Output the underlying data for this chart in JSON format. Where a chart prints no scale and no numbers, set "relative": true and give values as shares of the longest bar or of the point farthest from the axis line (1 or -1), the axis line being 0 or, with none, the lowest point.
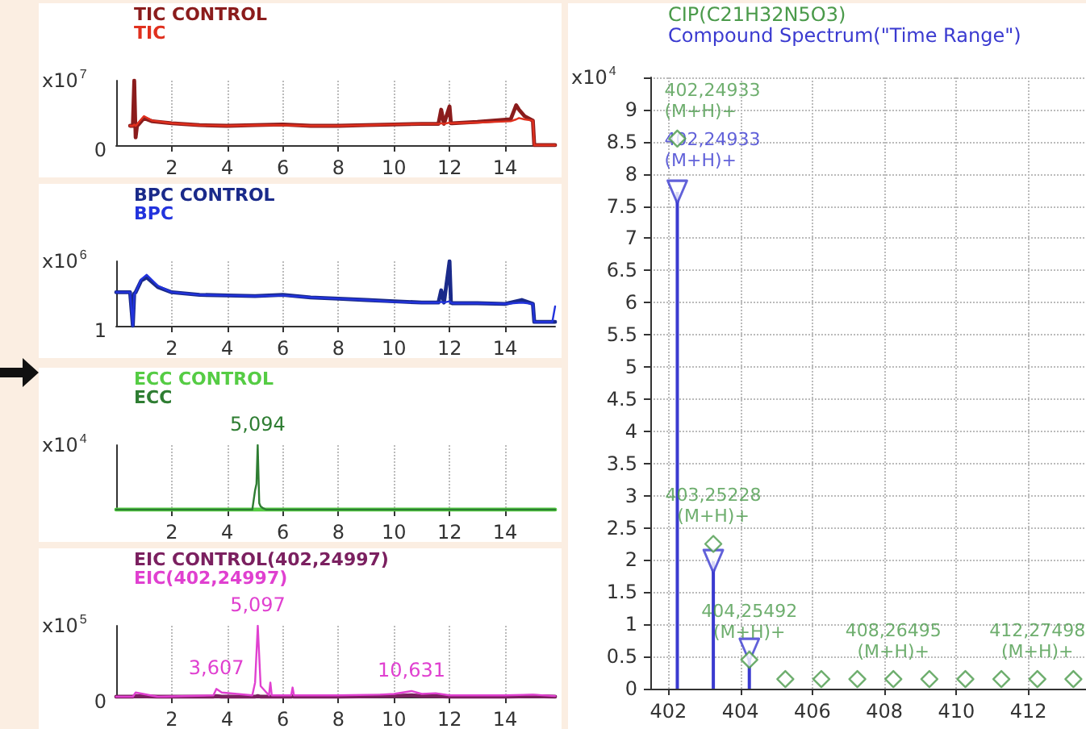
{
  "chart_data": [
    {
      "type": "line",
      "relative": true,
      "xlim": [
        0,
        15.8
      ],
      "xticks": [
        2,
        4,
        6,
        8,
        10,
        12,
        14
      ],
      "ylabel": "x10$^{7}$",
      "grid": "x",
      "legend": "top left",
      "marker": "none",
      "annotations": [
        "0"
      ],
      "x": [
        0.5,
        0.6,
        0.65,
        0.7,
        0.75,
        0.8,
        1.0,
        1.3,
        2,
        3,
        4,
        5,
        6,
        7,
        8,
        9,
        10,
        11,
        11.6,
        11.7,
        11.8,
        12.0,
        12.05,
        12.1,
        13,
        14.2,
        14.4,
        14.5,
        14.7,
        15.0,
        15.05,
        15.8
      ],
      "series": [
        {
          "name": "TIC CONTROL",
          "color": "#8b1c1c",
          "values": [
            0.3,
            0.3,
            1.0,
            0.12,
            0.3,
            0.32,
            0.42,
            0.37,
            0.34,
            0.31,
            0.3,
            0.31,
            0.32,
            0.3,
            0.3,
            0.31,
            0.32,
            0.33,
            0.33,
            0.55,
            0.33,
            0.6,
            0.34,
            0.34,
            0.36,
            0.4,
            0.62,
            0.55,
            0.45,
            0.38,
            0,
            0
          ]
        },
        {
          "name": "TIC",
          "color": "#e0301e",
          "values": [
            0.3,
            0.3,
            0.32,
            0.3,
            0.32,
            0.35,
            0.45,
            0.38,
            0.34,
            0.31,
            0.3,
            0.31,
            0.31,
            0.3,
            0.3,
            0.31,
            0.32,
            0.33,
            0.33,
            0.34,
            0.33,
            0.35,
            0.34,
            0.34,
            0.35,
            0.37,
            0.4,
            0.42,
            0.4,
            0.38,
            0,
            0
          ]
        }
      ]
    },
    {
      "type": "line",
      "relative": true,
      "xlim": [
        0,
        15.8
      ],
      "xticks": [
        2,
        4,
        6,
        8,
        10,
        12,
        14
      ],
      "ylabel": "x10$^{6}$",
      "grid": "x",
      "legend": "top left",
      "marker": "none",
      "annotations": [
        "1"
      ],
      "x": [
        0,
        0.5,
        0.6,
        0.65,
        0.7,
        0.9,
        1.1,
        1.5,
        2,
        3,
        4,
        5,
        6,
        7,
        8,
        9,
        10,
        11,
        11.6,
        11.7,
        11.8,
        12.0,
        12.05,
        12.1,
        13,
        14,
        14.6,
        15.0,
        15.05,
        15.7,
        15.8
      ],
      "series": [
        {
          "name": "BPC CONTROL",
          "color": "#1a2a8a",
          "values": [
            0.52,
            0.52,
            0.0,
            0.5,
            0.52,
            0.7,
            0.75,
            0.6,
            0.52,
            0.48,
            0.47,
            0.46,
            0.48,
            0.44,
            0.42,
            0.4,
            0.38,
            0.36,
            0.36,
            0.55,
            0.36,
            1.0,
            0.36,
            0.35,
            0.35,
            0.34,
            0.4,
            0.34,
            0.06,
            0.06,
            0.06
          ]
        },
        {
          "name": "BPC",
          "color": "#2233dd",
          "values": [
            0.52,
            0.52,
            0.0,
            0.48,
            0.52,
            0.72,
            0.79,
            0.62,
            0.52,
            0.48,
            0.47,
            0.46,
            0.47,
            0.44,
            0.42,
            0.4,
            0.37,
            0.36,
            0.36,
            0.37,
            0.36,
            0.38,
            0.36,
            0.35,
            0.35,
            0.34,
            0.36,
            0.34,
            0.06,
            0.06,
            0.3
          ]
        }
      ]
    },
    {
      "type": "line",
      "relative": true,
      "xlim": [
        0,
        15.8
      ],
      "xticks": [
        2,
        4,
        6,
        8,
        10,
        12,
        14
      ],
      "ylabel": "x10$^{4}$",
      "grid": "x",
      "legend": "top left",
      "marker": "none",
      "annotations": [
        {
          "text": "5,094",
          "x": 5.094,
          "y": 1
        }
      ],
      "x": [
        0,
        4.9,
        5.0,
        5.05,
        5.094,
        5.15,
        5.2,
        5.3,
        5.4,
        15.8
      ],
      "series": [
        {
          "name": "ECC CONTROL",
          "color": "#55cc44",
          "values": [
            0,
            0,
            0,
            0,
            0,
            0,
            0,
            0,
            0,
            0
          ]
        },
        {
          "name": "ECC",
          "color": "#2e7d32",
          "values": [
            0,
            0,
            0.3,
            0.4,
            1.0,
            0.1,
            0.05,
            0.02,
            0,
            0
          ]
        }
      ]
    },
    {
      "type": "line",
      "relative": true,
      "xlim": [
        0,
        15.8
      ],
      "xticks": [
        2,
        4,
        6,
        8,
        10,
        12,
        14
      ],
      "ylabel": "x10$^{5}$",
      "grid": "x",
      "legend": "top left",
      "marker": "none",
      "annotations": [
        "0",
        {
          "text": "5,097",
          "x": 5.097,
          "y": 1
        },
        {
          "text": "3,607",
          "x": 3.607,
          "y": 0.11
        },
        {
          "text": "10,631",
          "x": 10.631,
          "y": 0.08
        }
      ],
      "x": [
        0,
        0.6,
        0.7,
        1.5,
        3.5,
        3.607,
        3.8,
        4.9,
        5.0,
        5.097,
        5.2,
        5.5,
        5.55,
        5.6,
        6.3,
        6.35,
        6.4,
        8,
        9.5,
        10,
        10.631,
        11,
        11.5,
        12,
        14,
        15,
        15.8
      ],
      "series": [
        {
          "name": "EIC CONTROL(402,24997)",
          "color": "#7b2060",
          "values": [
            0,
            0,
            0.01,
            0,
            0,
            0.01,
            0,
            0,
            0,
            0.01,
            0,
            0,
            0,
            0,
            0,
            0.01,
            0,
            0,
            0.01,
            0.01,
            0.02,
            0.01,
            0.01,
            0,
            0,
            0.01,
            0
          ]
        },
        {
          "name": "EIC(402,24997)",
          "color": "#e040d0",
          "values": [
            0,
            0,
            0.06,
            0,
            0.02,
            0.11,
            0.06,
            0.02,
            0.2,
            1.0,
            0.15,
            0.02,
            0.2,
            0.02,
            0.02,
            0.13,
            0.02,
            0.02,
            0.03,
            0.04,
            0.08,
            0.04,
            0.05,
            0.02,
            0.02,
            0.03,
            0.01
          ]
        }
      ]
    },
    {
      "type": "scatter",
      "xlim": [
        401.5,
        413.6
      ],
      "xticks": [
        402,
        404,
        406,
        408,
        410,
        412
      ],
      "ylim": [
        0,
        9.5
      ],
      "yticks": [
        0,
        0.5,
        1,
        1.5,
        2,
        2.5,
        3,
        3.5,
        4,
        4.5,
        5,
        5.5,
        6,
        6.5,
        7,
        7.5,
        8,
        8.5,
        9,
        {
          "value": 9.5,
          "label": null
        }
      ],
      "ylabel": "x10$^{4}$",
      "grid": true,
      "legend": "top left",
      "series": [
        {
          "name": "CIP(C21H32N5O3)",
          "marker": "diamond",
          "color": "#4a9a4a",
          "x": [
            402.25,
            403.25,
            404.25,
            405.25,
            406.25,
            407.25,
            408.25,
            409.25,
            410.25,
            411.25,
            412.25,
            413.25
          ],
          "values": [
            8.55,
            2.25,
            0.45,
            0.15,
            0.15,
            0.15,
            0.15,
            0.15,
            0.15,
            0.15,
            0.15,
            0.15
          ],
          "value_labels": [
            "402,24933\n(M+H)+",
            "403,25228\n(M+H)+",
            "404,25492\n(M+H)+",
            null,
            null,
            null,
            "408,26495\n(M+H)+",
            null,
            null,
            null,
            "412,27498\n(M+H)+",
            null
          ]
        },
        {
          "name": "Compound Spectrum(\"Time Range\")",
          "type": "lollipop",
          "marker": "triangle",
          "color": "#3a3ad0",
          "x": [
            402.25,
            403.25,
            404.25
          ],
          "values": [
            7.72,
            1.98,
            0.6
          ],
          "value_labels": [
            "402,24933\n(M+H)+",
            null,
            null
          ]
        }
      ]
    }
  ]
}
